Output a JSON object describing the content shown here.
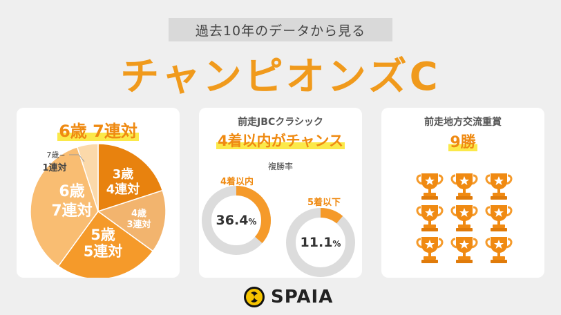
{
  "header": {
    "subtitle": "過去10年のデータから見る",
    "title": "チャンピオンズC"
  },
  "card1": {
    "headline": "6歳 7連対",
    "pie_labels": {
      "age3_line1": "3歳",
      "age3_line2": "4連対",
      "age4_line1": "4歳",
      "age4_line2": "3連対",
      "age5_line1": "5歳",
      "age5_line2": "5連対",
      "age6_line1": "6歳",
      "age6_line2": "7連対",
      "age7_line1": "7歳~",
      "age7_line2": "1連対"
    }
  },
  "card2": {
    "sub_headline": "前走JBCクラシック",
    "headline": "4着以内がチャンス",
    "metric_label": "複勝率",
    "donut1_label": "4着以内",
    "donut1_value": "36.4",
    "donut2_label": "5着以下",
    "donut2_value": "11.1",
    "percent_sign": "%"
  },
  "card3": {
    "sub_headline": "前走地方交流重賞",
    "headline": "9勝",
    "trophy_count": 9
  },
  "logo": {
    "text": "SPAIA"
  },
  "colors": {
    "accent": "#f09a1c",
    "highlight": "#fbe94a",
    "age3": "#e8820e",
    "age4": "#f2b46e",
    "age5": "#f59a2a",
    "age6": "#f9bd72",
    "age7": "#fbd9aa",
    "donut_track": "#dcdcdc"
  },
  "chart_data": [
    {
      "type": "pie",
      "categories": [
        "3歳",
        "4歳",
        "5歳",
        "6歳",
        "7歳~"
      ],
      "values": [
        4,
        3,
        5,
        7,
        1
      ]
    },
    {
      "type": "pie",
      "categories": [
        "4着以内"
      ],
      "values": [
        36.4
      ]
    },
    {
      "type": "pie",
      "categories": [
        "5着以下"
      ],
      "values": [
        11.1
      ]
    }
  ]
}
